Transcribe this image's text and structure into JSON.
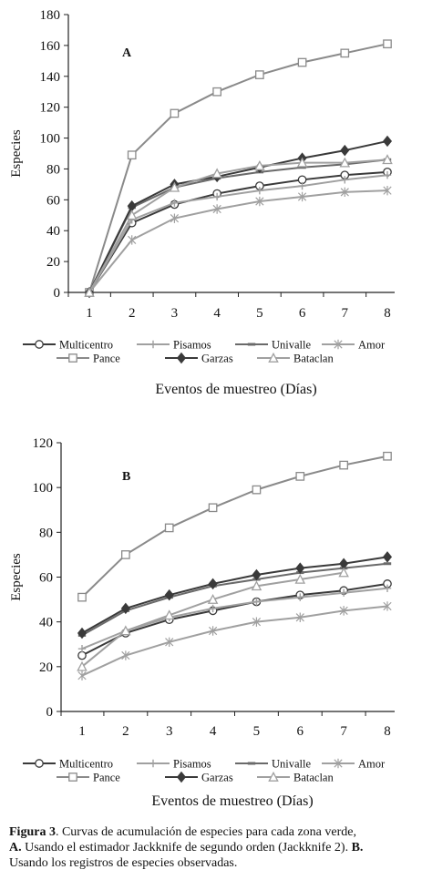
{
  "chart_data": [
    {
      "type": "line",
      "panel_label": "A",
      "x": [
        1,
        2,
        3,
        4,
        5,
        6,
        7,
        8
      ],
      "xlabel": "Eventos de muestreo (Días)",
      "ylabel": "Especies",
      "ylim": [
        0,
        180
      ],
      "yticks": [
        0,
        20,
        40,
        60,
        80,
        100,
        120,
        140,
        160,
        180
      ],
      "grid": false,
      "legend_position": "bottom",
      "series": [
        {
          "name": "Multicentro",
          "marker": "circle",
          "color": "#3a3a3a",
          "values": [
            0,
            45,
            57,
            64,
            69,
            73,
            76,
            78
          ]
        },
        {
          "name": "Pisamos",
          "marker": "plus",
          "color": "#a0a0a0",
          "values": [
            0,
            47,
            58,
            62,
            66,
            69,
            73,
            76
          ]
        },
        {
          "name": "Univalle",
          "marker": "dash",
          "color": "#6a6a6a",
          "values": [
            0,
            55,
            68,
            74,
            78,
            81,
            83,
            86
          ]
        },
        {
          "name": "Amor",
          "marker": "star",
          "color": "#a0a0a0",
          "values": [
            0,
            34,
            48,
            54,
            59,
            62,
            65,
            66
          ]
        },
        {
          "name": "Pance",
          "marker": "square",
          "color": "#8a8a8a",
          "values": [
            0,
            89,
            116,
            130,
            141,
            149,
            155,
            161
          ]
        },
        {
          "name": "Garzas",
          "marker": "diamond",
          "color": "#3a3a3a",
          "values": [
            0,
            56,
            70,
            75,
            81,
            87,
            92,
            98
          ]
        },
        {
          "name": "Bataclan",
          "marker": "triangle",
          "color": "#a0a0a0",
          "values": [
            0,
            50,
            68,
            77,
            82,
            84,
            84,
            86
          ]
        }
      ]
    },
    {
      "type": "line",
      "panel_label": "B",
      "x": [
        1,
        2,
        3,
        4,
        5,
        6,
        7,
        8
      ],
      "xlabel": "Eventos de muestreo (Días)",
      "ylabel": "Especies",
      "ylim": [
        0,
        120
      ],
      "yticks": [
        0,
        20,
        40,
        60,
        80,
        100,
        120
      ],
      "grid": false,
      "legend_position": "bottom",
      "series": [
        {
          "name": "Multicentro",
          "marker": "circle",
          "color": "#3a3a3a",
          "values": [
            25,
            35,
            41,
            45,
            49,
            52,
            54,
            57
          ]
        },
        {
          "name": "Pisamos",
          "marker": "plus",
          "color": "#a0a0a0",
          "values": [
            28,
            36,
            42,
            46,
            49,
            51,
            53,
            55
          ]
        },
        {
          "name": "Univalle",
          "marker": "dash",
          "color": "#6a6a6a",
          "values": [
            34,
            45,
            51,
            56,
            59,
            62,
            64,
            66
          ]
        },
        {
          "name": "Amor",
          "marker": "star",
          "color": "#a0a0a0",
          "values": [
            16,
            25,
            31,
            36,
            40,
            42,
            45,
            47
          ]
        },
        {
          "name": "Pance",
          "marker": "square",
          "color": "#8a8a8a",
          "values": [
            51,
            70,
            82,
            91,
            99,
            105,
            110,
            114
          ]
        },
        {
          "name": "Garzas",
          "marker": "diamond",
          "color": "#3a3a3a",
          "values": [
            35,
            46,
            52,
            57,
            61,
            64,
            66,
            69
          ]
        },
        {
          "name": "Bataclan",
          "marker": "triangle",
          "color": "#a0a0a0",
          "values": [
            20,
            36,
            43,
            50,
            56,
            59,
            62,
            null
          ]
        }
      ]
    }
  ],
  "caption": {
    "figure_label": "Figura 3",
    "text_1": ". Curvas de acumulación de especies para cada zona verde,",
    "a_label": "A.",
    "text_2": " Usando el estimador Jackknife de segundo orden (Jackknife 2).",
    "b_label": "B.",
    "text_3": "Usando los registros de especies observadas."
  }
}
